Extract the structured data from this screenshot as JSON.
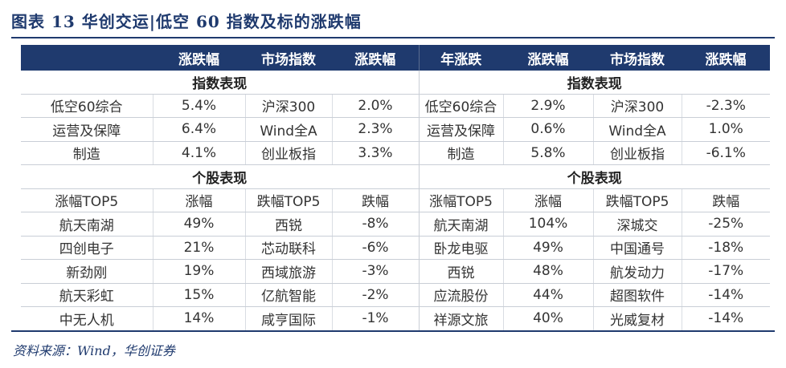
{
  "title": "图表 13   华创交运|低空 60 指数及标的涨跌幅",
  "header": [
    "",
    "涨跌幅",
    "市场指数",
    "涨跌幅",
    "年涨跌",
    "涨跌幅",
    "市场指数",
    "涨跌幅"
  ],
  "sections": {
    "index": "指数表现",
    "stocks": "个股表现"
  },
  "index_rows": [
    [
      "低空60综合",
      "5.4%",
      "沪深300",
      "2.0%",
      "低空60综合",
      "2.9%",
      "沪深300",
      "-2.3%"
    ],
    [
      "运营及保障",
      "6.4%",
      "Wind全A",
      "2.3%",
      "运营及保障",
      "0.6%",
      "Wind全A",
      "1.0%"
    ],
    [
      "制造",
      "4.1%",
      "创业板指",
      "3.3%",
      "制造",
      "5.8%",
      "创业板指",
      "-6.1%"
    ]
  ],
  "stock_header": [
    "涨幅TOP5",
    "涨幅",
    "跌幅TOP5",
    "跌幅",
    "涨幅TOP5",
    "涨幅",
    "跌幅TOP5",
    "跌幅"
  ],
  "stock_rows": [
    [
      "航天南湖",
      "49%",
      "西锐",
      "-8%",
      "航天南湖",
      "104%",
      "深城交",
      "-25%"
    ],
    [
      "四创电子",
      "21%",
      "芯动联科",
      "-6%",
      "卧龙电驱",
      "49%",
      "中国通号",
      "-18%"
    ],
    [
      "新劲刚",
      "19%",
      "西域旅游",
      "-3%",
      "西锐",
      "48%",
      "航发动力",
      "-17%"
    ],
    [
      "航天彩虹",
      "15%",
      "亿航智能",
      "-2%",
      "应流股份",
      "44%",
      "超图软件",
      "-14%"
    ],
    [
      "中无人机",
      "14%",
      "咸亨国际",
      "-1%",
      "祥源文旅",
      "40%",
      "光威复材",
      "-14%"
    ]
  ],
  "source": "资料来源：Wind，华创证券",
  "colors": {
    "header_bg": "#1f3a6e",
    "header_text": "#ffffff",
    "title": "#1f3a6e"
  }
}
